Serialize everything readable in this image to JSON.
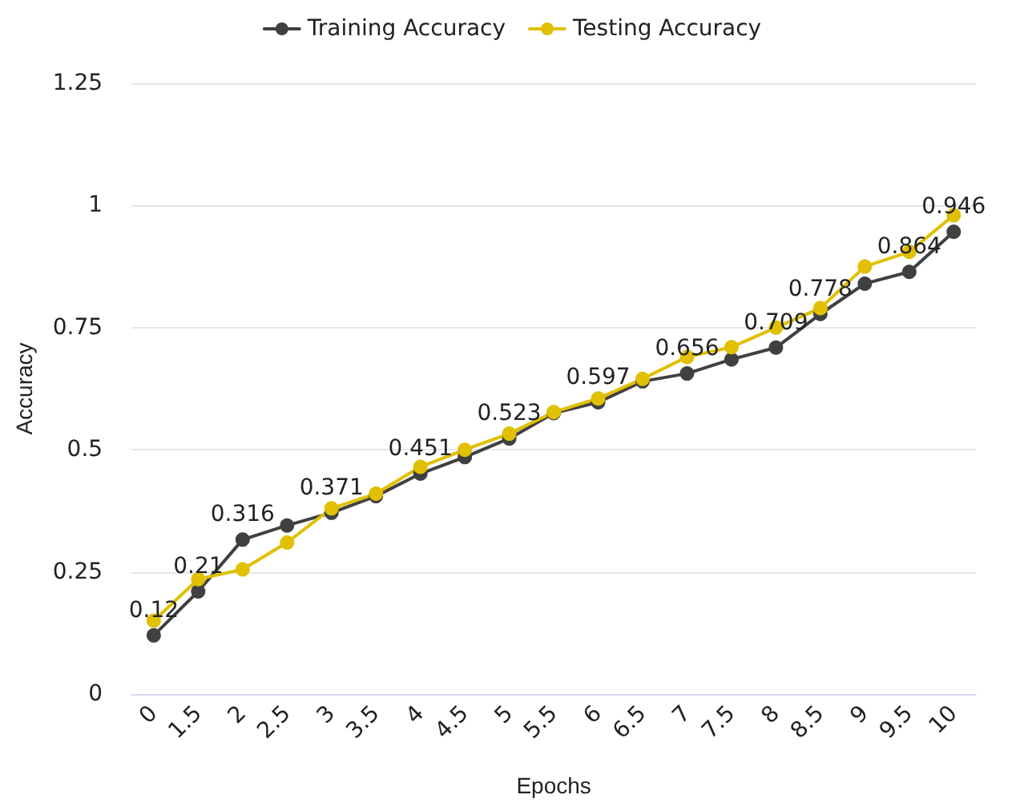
{
  "chart_data": {
    "type": "line",
    "xlabel": "Epochs",
    "ylabel": "Accuracy",
    "categories": [
      "0",
      "1.5",
      "2",
      "2.5",
      "3",
      "3.5",
      "4",
      "4.5",
      "5",
      "5.5",
      "6",
      "6.5",
      "7",
      "7.5",
      "8",
      "8.5",
      "9",
      "9.5",
      "10"
    ],
    "series": [
      {
        "name": "Training Accuracy",
        "color": "#404040",
        "values": [
          0.12,
          0.21,
          0.316,
          0.345,
          0.371,
          0.405,
          0.451,
          0.485,
          0.523,
          0.575,
          0.597,
          0.64,
          0.656,
          0.685,
          0.709,
          0.778,
          0.84,
          0.864,
          0.946
        ],
        "value_labels": [
          "0.12",
          "0.21",
          "0.316",
          null,
          "0.371",
          null,
          "0.451",
          null,
          "0.523",
          null,
          "0.597",
          null,
          "0.656",
          null,
          "0.709",
          "0.778",
          null,
          "0.864",
          "0.946"
        ]
      },
      {
        "name": "Testing Accuracy",
        "color": "#e0c000",
        "values": [
          0.15,
          0.235,
          0.255,
          0.31,
          0.38,
          0.41,
          0.465,
          0.5,
          0.533,
          0.577,
          0.605,
          0.645,
          0.69,
          0.71,
          0.75,
          0.79,
          0.875,
          0.905,
          0.98
        ]
      }
    ],
    "ylim": [
      0,
      1.25
    ],
    "yticks": [
      0,
      0.25,
      0.5,
      0.75,
      1,
      1.25
    ],
    "grid": "y",
    "legend": "top",
    "marker": "circle",
    "line_style": "solid"
  }
}
